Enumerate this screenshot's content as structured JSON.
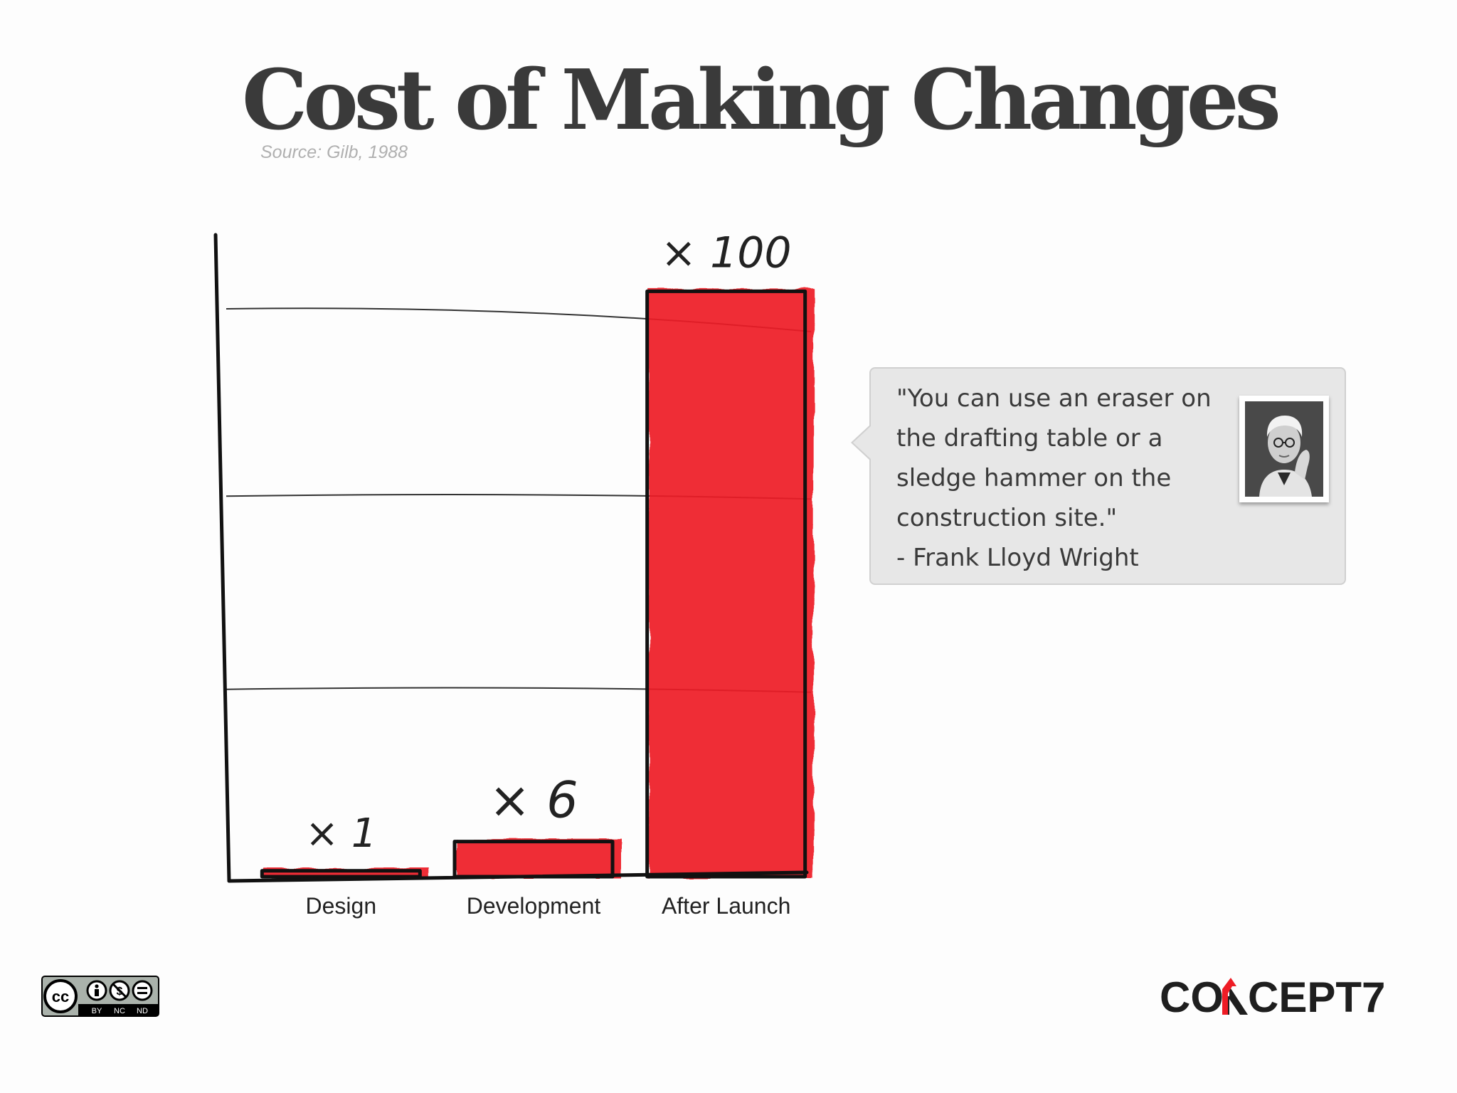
{
  "title": "Cost of Making Changes",
  "source": "Source:  Gilb, 1988",
  "chart_data": {
    "type": "bar",
    "categories": [
      "Design",
      "Development",
      "After Launch"
    ],
    "values": [
      1,
      6,
      100
    ],
    "data_labels": [
      "× 1",
      "× 6",
      "× 100"
    ],
    "bar_color": "#ee1c25",
    "xlabel": "",
    "ylabel": "",
    "ylim": [
      0,
      106
    ],
    "grid": true,
    "gridline_values": [
      32,
      65,
      97
    ],
    "style": "hand-drawn"
  },
  "quote": {
    "text": "\"You can use an eraser on the drafting table or a sledge hammer on the construction site.\"",
    "attribution": "- Frank Lloyd Wright",
    "portrait_icon": "portrait-photo-icon"
  },
  "footer": {
    "license_badge_icon": "creative-commons-by-nc-nd-icon",
    "license_badge": {
      "cc": "cc",
      "by": "BY",
      "nc": "NC",
      "nd": "ND"
    },
    "brand_logo": {
      "part1": "CO",
      "part2": "CEPT7",
      "accent_color": "#ee1c25"
    }
  },
  "colors": {
    "title": "#3a3a3a",
    "source": "#b0b0b0",
    "bar": "#ee1c25",
    "bubble_background": "#e7e7e7"
  }
}
